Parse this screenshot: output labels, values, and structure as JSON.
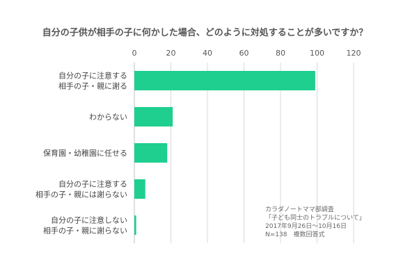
{
  "chart_data": {
    "type": "bar",
    "orientation": "horizontal",
    "title": "自分の子供が相手の子に何かした場合、どのように対処することが多いですか？",
    "categories": [
      [
        "自分の子に注意する",
        "相手の子・親に謝る"
      ],
      [
        "わからない"
      ],
      [
        "保育園・幼稚園に任せる"
      ],
      [
        "自分の子に注意する",
        "相手の子・親には謝らない"
      ],
      [
        "自分の子に注意しない",
        "相手の子・親に謝らない"
      ]
    ],
    "values": [
      99,
      21,
      18,
      6,
      1
    ],
    "xlim": [
      0,
      120
    ],
    "xticks": [
      0,
      20,
      40,
      60,
      80,
      100,
      120
    ],
    "grid": true,
    "bar_color": "#1fcf8f",
    "grid_color": "#d9d9d9",
    "axis_color": "#bfbfbf"
  },
  "notes": [
    "カラダノートママ部調査",
    "「子ども同士のトラブルについて」",
    "2017年9月26日〜10月16日",
    "N=138　複数回答式"
  ]
}
